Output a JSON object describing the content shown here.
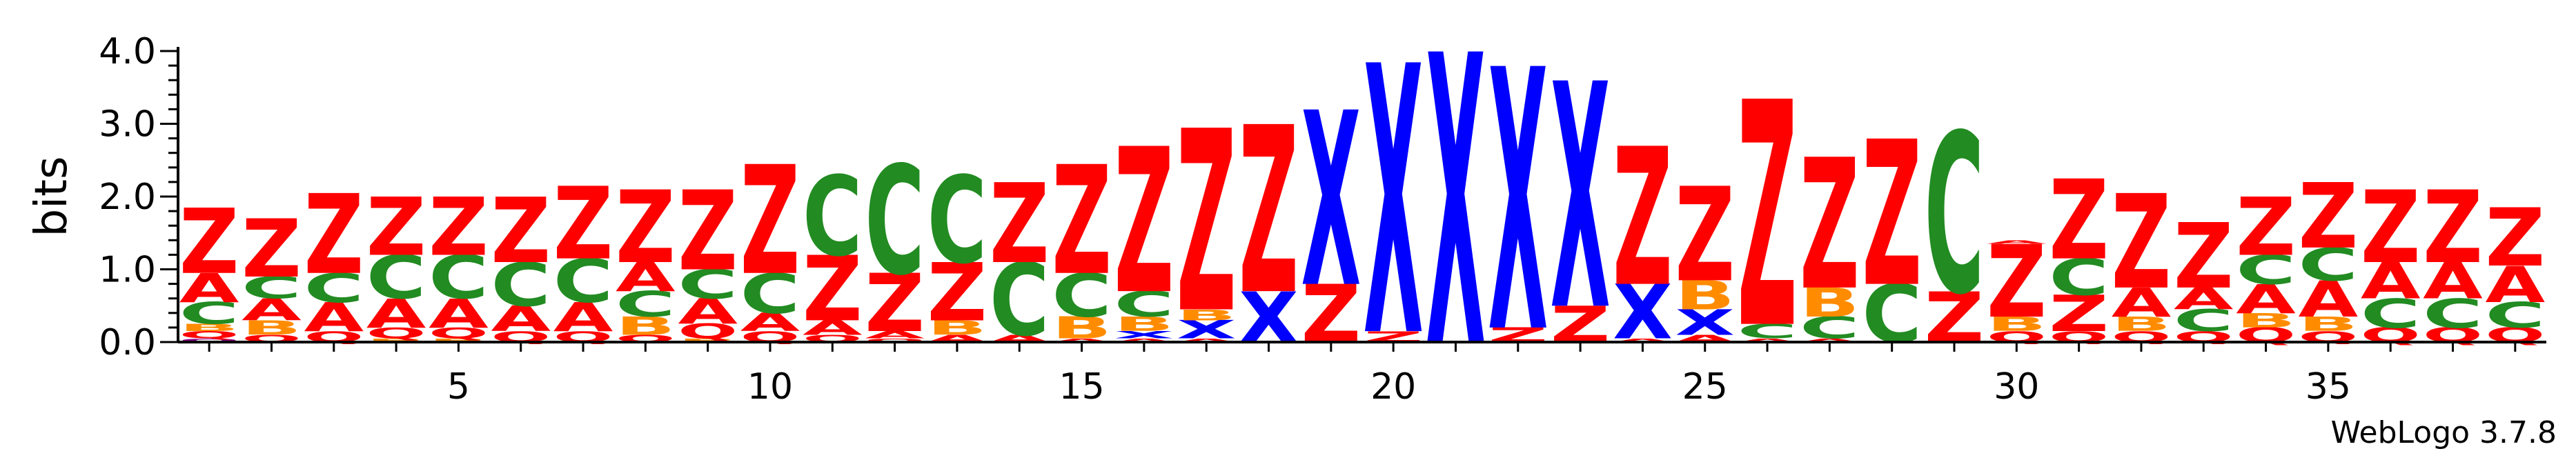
{
  "chart_data": {
    "type": "sequence-logo",
    "ylabel": "bits",
    "xlabel": "",
    "ylim": [
      0,
      4.0
    ],
    "yticks": [
      "0.0",
      "1.0",
      "2.0",
      "3.0",
      "4.0"
    ],
    "xticks": [
      5,
      10,
      15,
      20,
      25,
      30,
      35
    ],
    "colors": {
      "A": "#ff0000",
      "B": "#ff8c00",
      "C": "#228b22",
      "Q": "#ff0000",
      "X": "#0000ff",
      "Z": "#ff0000",
      "O": "#8b008b"
    },
    "positions": [
      {
        "pos": 1,
        "letters": [
          [
            "O",
            0.05
          ],
          [
            "Q",
            0.1
          ],
          [
            "B",
            0.1
          ],
          [
            "C",
            0.3
          ],
          [
            "A",
            0.4
          ],
          [
            "Z",
            0.9
          ]
        ]
      },
      {
        "pos": 2,
        "letters": [
          [
            "Q",
            0.1
          ],
          [
            "B",
            0.2
          ],
          [
            "A",
            0.3
          ],
          [
            "C",
            0.3
          ],
          [
            "Z",
            0.8
          ]
        ]
      },
      {
        "pos": 3,
        "letters": [
          [
            "Q",
            0.15
          ],
          [
            "A",
            0.4
          ],
          [
            "C",
            0.4
          ],
          [
            "Z",
            1.1
          ]
        ]
      },
      {
        "pos": 4,
        "letters": [
          [
            "B",
            0.05
          ],
          [
            "Q",
            0.15
          ],
          [
            "A",
            0.4
          ],
          [
            "C",
            0.6
          ],
          [
            "Z",
            0.8
          ]
        ]
      },
      {
        "pos": 5,
        "letters": [
          [
            "B",
            0.05
          ],
          [
            "Q",
            0.15
          ],
          [
            "A",
            0.4
          ],
          [
            "C",
            0.6
          ],
          [
            "Z",
            0.8
          ]
        ]
      },
      {
        "pos": 6,
        "letters": [
          [
            "Q",
            0.15
          ],
          [
            "A",
            0.35
          ],
          [
            "C",
            0.6
          ],
          [
            "Z",
            0.9
          ]
        ]
      },
      {
        "pos": 7,
        "letters": [
          [
            "Q",
            0.15
          ],
          [
            "A",
            0.4
          ],
          [
            "C",
            0.6
          ],
          [
            "Z",
            1.0
          ]
        ]
      },
      {
        "pos": 8,
        "letters": [
          [
            "Q",
            0.1
          ],
          [
            "B",
            0.25
          ],
          [
            "C",
            0.35
          ],
          [
            "A",
            0.4
          ],
          [
            "Z",
            1.0
          ]
        ]
      },
      {
        "pos": 9,
        "letters": [
          [
            "B",
            0.05
          ],
          [
            "Q",
            0.2
          ],
          [
            "A",
            0.35
          ],
          [
            "C",
            0.4
          ],
          [
            "Z",
            1.1
          ]
        ]
      },
      {
        "pos": 10,
        "letters": [
          [
            "Q",
            0.15
          ],
          [
            "A",
            0.25
          ],
          [
            "C",
            0.55
          ],
          [
            "Z",
            1.5
          ]
        ]
      },
      {
        "pos": 11,
        "letters": [
          [
            "Q",
            0.1
          ],
          [
            "A",
            0.2
          ],
          [
            "Z",
            0.9
          ],
          [
            "C",
            1.1
          ]
        ]
      },
      {
        "pos": 12,
        "letters": [
          [
            "Q",
            0.05
          ],
          [
            "A",
            0.1
          ],
          [
            "Z",
            0.8
          ],
          [
            "C",
            1.5
          ]
        ]
      },
      {
        "pos": 13,
        "letters": [
          [
            "A",
            0.1
          ],
          [
            "B",
            0.2
          ],
          [
            "Z",
            0.8
          ],
          [
            "C",
            1.2
          ]
        ]
      },
      {
        "pos": 14,
        "letters": [
          [
            "A",
            0.1
          ],
          [
            "C",
            1.0
          ],
          [
            "Z",
            1.1
          ]
        ]
      },
      {
        "pos": 15,
        "letters": [
          [
            "A",
            0.05
          ],
          [
            "B",
            0.3
          ],
          [
            "C",
            0.6
          ],
          [
            "Z",
            1.5
          ]
        ]
      },
      {
        "pos": 16,
        "letters": [
          [
            "A",
            0.05
          ],
          [
            "X",
            0.1
          ],
          [
            "B",
            0.2
          ],
          [
            "C",
            0.35
          ],
          [
            "Z",
            2.0
          ]
        ]
      },
      {
        "pos": 17,
        "letters": [
          [
            "A",
            0.05
          ],
          [
            "X",
            0.25
          ],
          [
            "B",
            0.15
          ],
          [
            "Z",
            2.5
          ]
        ]
      },
      {
        "pos": 18,
        "letters": [
          [
            "X",
            0.7
          ],
          [
            "Z",
            2.3
          ]
        ]
      },
      {
        "pos": 19,
        "letters": [
          [
            "Z",
            0.8
          ],
          [
            "X",
            2.4
          ]
        ]
      },
      {
        "pos": 20,
        "letters": [
          [
            "Z",
            0.15
          ],
          [
            "X",
            3.7
          ]
        ]
      },
      {
        "pos": 21,
        "letters": [
          [
            "X",
            4.0
          ]
        ]
      },
      {
        "pos": 22,
        "letters": [
          [
            "Z",
            0.2
          ],
          [
            "X",
            3.6
          ]
        ]
      },
      {
        "pos": 23,
        "letters": [
          [
            "Z",
            0.5
          ],
          [
            "X",
            3.1
          ]
        ]
      },
      {
        "pos": 24,
        "letters": [
          [
            "A",
            0.05
          ],
          [
            "X",
            0.75
          ],
          [
            "Z",
            1.9
          ]
        ]
      },
      {
        "pos": 25,
        "letters": [
          [
            "A",
            0.1
          ],
          [
            "X",
            0.35
          ],
          [
            "B",
            0.4
          ],
          [
            "Z",
            1.3
          ]
        ]
      },
      {
        "pos": 26,
        "letters": [
          [
            "A",
            0.05
          ],
          [
            "C",
            0.2
          ],
          [
            "Z",
            3.1
          ]
        ]
      },
      {
        "pos": 27,
        "letters": [
          [
            "A",
            0.05
          ],
          [
            "C",
            0.3
          ],
          [
            "B",
            0.4
          ],
          [
            "Z",
            1.8
          ]
        ]
      },
      {
        "pos": 28,
        "letters": [
          [
            "C",
            0.8
          ],
          [
            "Z",
            2.0
          ]
        ]
      },
      {
        "pos": 29,
        "letters": [
          [
            "Z",
            0.7
          ],
          [
            "C",
            2.2
          ]
        ]
      },
      {
        "pos": 30,
        "letters": [
          [
            "Q",
            0.15
          ],
          [
            "B",
            0.2
          ],
          [
            "Z",
            1.0
          ],
          [
            "A",
            0.05
          ]
        ]
      },
      {
        "pos": 31,
        "letters": [
          [
            "Q",
            0.15
          ],
          [
            "Z",
            0.5
          ],
          [
            "C",
            0.5
          ],
          [
            "Z",
            1.1
          ]
        ]
      },
      {
        "pos": 32,
        "letters": [
          [
            "Q",
            0.15
          ],
          [
            "B",
            0.2
          ],
          [
            "A",
            0.4
          ],
          [
            "Z",
            1.3
          ]
        ]
      },
      {
        "pos": 33,
        "letters": [
          [
            "Q",
            0.15
          ],
          [
            "C",
            0.3
          ],
          [
            "A",
            0.3
          ],
          [
            "Z",
            0.9
          ]
        ]
      },
      {
        "pos": 34,
        "letters": [
          [
            "Q",
            0.2
          ],
          [
            "B",
            0.2
          ],
          [
            "A",
            0.4
          ],
          [
            "C",
            0.4
          ],
          [
            "Z",
            0.8
          ]
        ]
      },
      {
        "pos": 35,
        "letters": [
          [
            "Q",
            0.15
          ],
          [
            "B",
            0.2
          ],
          [
            "A",
            0.5
          ],
          [
            "C",
            0.45
          ],
          [
            "Z",
            0.9
          ]
        ]
      },
      {
        "pos": 36,
        "letters": [
          [
            "Q",
            0.2
          ],
          [
            "C",
            0.4
          ],
          [
            "A",
            0.5
          ],
          [
            "Z",
            1.0
          ]
        ]
      },
      {
        "pos": 37,
        "letters": [
          [
            "Q",
            0.2
          ],
          [
            "C",
            0.4
          ],
          [
            "A",
            0.5
          ],
          [
            "Z",
            1.0
          ]
        ]
      },
      {
        "pos": 38,
        "letters": [
          [
            "Q",
            0.2
          ],
          [
            "C",
            0.35
          ],
          [
            "A",
            0.5
          ],
          [
            "Z",
            0.8
          ]
        ]
      }
    ]
  },
  "footer": {
    "credit": "WebLogo 3.7.8"
  }
}
